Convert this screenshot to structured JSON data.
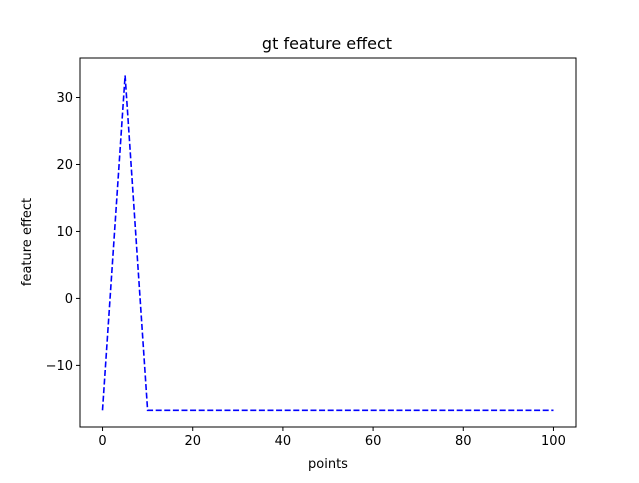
{
  "chart_data": {
    "type": "line",
    "title": "gt feature effect",
    "xlabel": "points",
    "ylabel": "feature effect",
    "xlim": [
      -5,
      105
    ],
    "ylim": [
      -19.2,
      35.9
    ],
    "xticks": [
      0,
      20,
      40,
      60,
      80,
      100
    ],
    "yticks": [
      -10,
      0,
      10,
      20,
      30
    ],
    "ytick_labels": [
      "−10",
      "0",
      "10",
      "20",
      "30"
    ],
    "grid": false,
    "series": [
      {
        "color": "#0000ff",
        "linestyle": "dashed",
        "x": [
          0,
          5,
          10,
          100
        ],
        "y": [
          -16.7,
          33.3,
          -16.7,
          -16.7
        ]
      }
    ]
  }
}
